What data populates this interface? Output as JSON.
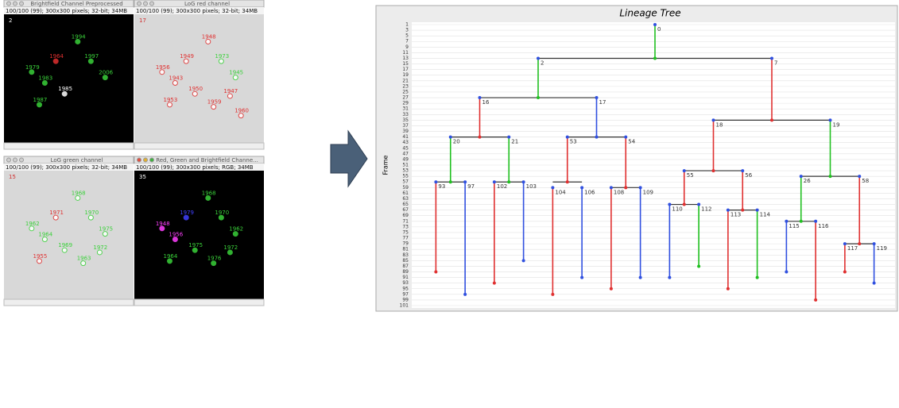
{
  "windows": [
    {
      "title": "Brightfield Channel Preprocessed",
      "status": "100/100 (99); 300x300 pixels; 32-bit; 34MB",
      "frame": "2",
      "background": "#000000",
      "cells": [
        {
          "label": "1994",
          "color": "#3ad13a"
        },
        {
          "label": "1997",
          "color": "#3ad13a"
        },
        {
          "label": "1964",
          "color": "#e03030"
        },
        {
          "label": "1979",
          "color": "#3ad13a"
        },
        {
          "label": "1983",
          "color": "#3ad13a"
        },
        {
          "label": "1985",
          "color": "#ffffff"
        },
        {
          "label": "2006",
          "color": "#3ad13a"
        },
        {
          "label": "1987",
          "color": "#3ad13a"
        }
      ]
    },
    {
      "title": "LoG red channel",
      "status": "100/100 (99); 300x300 pixels; 32-bit; 34MB",
      "frame": "17",
      "background": "#d8d8d8",
      "cells": [
        {
          "label": "1948",
          "color": "#e03030"
        },
        {
          "label": "1973",
          "color": "#3ad13a"
        },
        {
          "label": "1949",
          "color": "#e03030"
        },
        {
          "label": "1956",
          "color": "#e03030"
        },
        {
          "label": "1943",
          "color": "#e03030"
        },
        {
          "label": "1950",
          "color": "#e03030"
        },
        {
          "label": "1945",
          "color": "#3ad13a"
        },
        {
          "label": "1953",
          "color": "#e03030"
        },
        {
          "label": "1959",
          "color": "#e03030"
        },
        {
          "label": "1947",
          "color": "#e03030"
        },
        {
          "label": "1960",
          "color": "#e03030"
        }
      ]
    },
    {
      "title": "LoG green channel",
      "status": "100/100 (99); 300x300 pixels; 32-bit; 34MB",
      "frame": "15",
      "background": "#d8d8d8",
      "cells": [
        {
          "label": "1968",
          "color": "#3ad13a"
        },
        {
          "label": "1970",
          "color": "#3ad13a"
        },
        {
          "label": "1971",
          "color": "#e03030"
        },
        {
          "label": "1962",
          "color": "#3ad13a"
        },
        {
          "label": "1964",
          "color": "#3ad13a"
        },
        {
          "label": "1969",
          "color": "#3ad13a"
        },
        {
          "label": "1975",
          "color": "#3ad13a"
        },
        {
          "label": "1955",
          "color": "#e03030"
        },
        {
          "label": "1963",
          "color": "#3ad13a"
        },
        {
          "label": "1972",
          "color": "#3ad13a"
        }
      ]
    },
    {
      "title": "Red, Green and Brightfield Channe...",
      "status": "100/100 (99); 300x300 pixels; RGB; 34MB",
      "frame": "35",
      "background": "#000000",
      "cells": [
        {
          "label": "1968",
          "color": "#3ad13a"
        },
        {
          "label": "1970",
          "color": "#3ad13a"
        },
        {
          "label": "1979",
          "color": "#4040ff"
        },
        {
          "label": "1948",
          "color": "#ff40ff"
        },
        {
          "label": "1956",
          "color": "#ff40ff"
        },
        {
          "label": "1975",
          "color": "#3ad13a"
        },
        {
          "label": "1962",
          "color": "#3ad13a"
        },
        {
          "label": "1964",
          "color": "#3ad13a"
        },
        {
          "label": "1976",
          "color": "#3ad13a"
        },
        {
          "label": "1972",
          "color": "#3ad13a"
        }
      ]
    }
  ],
  "tree": {
    "title": "Lineage Tree",
    "axis_label": "Frame",
    "ylim": [
      1,
      101
    ],
    "yticks": [
      1,
      3,
      5,
      7,
      9,
      11,
      13,
      15,
      17,
      19,
      21,
      23,
      25,
      27,
      29,
      31,
      33,
      35,
      37,
      39,
      41,
      43,
      45,
      47,
      49,
      51,
      53,
      55,
      57,
      59,
      61,
      63,
      65,
      67,
      69,
      71,
      73,
      75,
      77,
      79,
      81,
      83,
      85,
      87,
      89,
      91,
      93,
      95,
      97,
      99,
      101
    ],
    "nodes": [
      {
        "label": "0",
        "start": 1,
        "end": 13,
        "parent": null,
        "color": "#20c020"
      },
      {
        "label": "2",
        "start": 13,
        "end": 27,
        "parent": 0,
        "color": "#20c020"
      },
      {
        "label": "7",
        "start": 13,
        "end": 35,
        "parent": 0,
        "color": "#e03030"
      },
      {
        "label": "16",
        "start": 27,
        "end": 41,
        "parent": 1,
        "color": "#e03030"
      },
      {
        "label": "17",
        "start": 27,
        "end": 41,
        "parent": 1,
        "color": "#3050e0"
      },
      {
        "label": "18",
        "start": 35,
        "end": 53,
        "parent": 2,
        "color": "#e03030"
      },
      {
        "label": "19",
        "start": 35,
        "end": 55,
        "parent": 2,
        "color": "#20c020"
      },
      {
        "label": "20",
        "start": 41,
        "end": 57,
        "parent": 3,
        "color": "#20c020"
      },
      {
        "label": "21",
        "start": 41,
        "end": 57,
        "parent": 3,
        "color": "#20c020"
      },
      {
        "label": "53",
        "start": 41,
        "end": 57,
        "parent": 4,
        "color": "#e03030"
      },
      {
        "label": "54",
        "start": 41,
        "end": 59,
        "parent": 4,
        "color": "#e03030"
      },
      {
        "label": "55",
        "start": 53,
        "end": 65,
        "parent": 5,
        "color": "#e03030"
      },
      {
        "label": "56",
        "start": 53,
        "end": 67,
        "parent": 5,
        "color": "#e03030"
      },
      {
        "label": "26",
        "start": 55,
        "end": 71,
        "parent": 6,
        "color": "#20c020"
      },
      {
        "label": "58",
        "start": 55,
        "end": 79,
        "parent": 6,
        "color": "#e03030"
      },
      {
        "label": "93",
        "start": 57,
        "end": 89,
        "parent": 7,
        "color": "#e03030"
      },
      {
        "label": "97",
        "start": 57,
        "end": 97,
        "parent": 7,
        "color": "#3050e0"
      },
      {
        "label": "102",
        "start": 57,
        "end": 93,
        "parent": 8,
        "color": "#e03030"
      },
      {
        "label": "103",
        "start": 57,
        "end": 85,
        "parent": 8,
        "color": "#3050e0"
      },
      {
        "label": "104",
        "start": 59,
        "end": 97,
        "parent": 9,
        "color": "#e03030"
      },
      {
        "label": "106",
        "start": 59,
        "end": 91,
        "parent": 9,
        "color": "#3050e0"
      },
      {
        "label": "108",
        "start": 59,
        "end": 95,
        "parent": 10,
        "color": "#e03030"
      },
      {
        "label": "109",
        "start": 59,
        "end": 91,
        "parent": 10,
        "color": "#3050e0"
      },
      {
        "label": "110",
        "start": 65,
        "end": 91,
        "parent": 11,
        "color": "#3050e0"
      },
      {
        "label": "112",
        "start": 65,
        "end": 87,
        "parent": 11,
        "color": "#20c020"
      },
      {
        "label": "113",
        "start": 67,
        "end": 95,
        "parent": 12,
        "color": "#e03030"
      },
      {
        "label": "114",
        "start": 67,
        "end": 91,
        "parent": 12,
        "color": "#20c020"
      },
      {
        "label": "115",
        "start": 71,
        "end": 89,
        "parent": 13,
        "color": "#3050e0"
      },
      {
        "label": "116",
        "start": 71,
        "end": 99,
        "parent": 13,
        "color": "#e03030"
      },
      {
        "label": "117",
        "start": 79,
        "end": 89,
        "parent": 14,
        "color": "#e03030"
      },
      {
        "label": "119",
        "start": 79,
        "end": 93,
        "parent": 14,
        "color": "#3050e0"
      }
    ]
  }
}
